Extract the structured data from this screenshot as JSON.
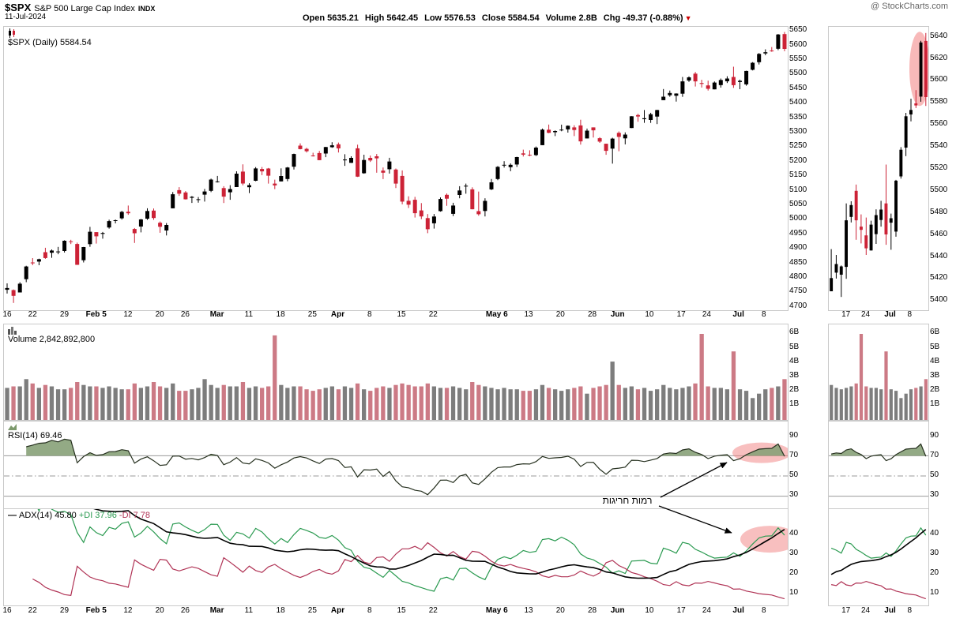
{
  "header": {
    "symbol": "$SPX",
    "name": "S&P 500 Large Cap Index",
    "exchange": "INDX",
    "date": "11-Jul-2024",
    "credit": "@ StockCharts.com",
    "quote": {
      "open_label": "Open",
      "open": "5635.21",
      "high_label": "High",
      "high": "5642.45",
      "low_label": "Low",
      "low": "5576.53",
      "close_label": "Close",
      "close": "5584.54",
      "volume_label": "Volume",
      "volume": "2.8B",
      "chg_label": "Chg",
      "chg": "-49.37 (-0.88%)",
      "chg_dir": "▼"
    }
  },
  "panels": {
    "price": {
      "label": "$SPX (Daily) 5584.54"
    },
    "volume": {
      "label": "Volume 2,842,892,800"
    },
    "rsi": {
      "label": "RSI(14) 69.46"
    },
    "adx": {
      "label": "ADX(14) 45.80",
      "pdi": "+DI 37.96",
      "mdi": "-DI 7.78"
    }
  },
  "annotation": {
    "text": "רמות חריגות"
  },
  "chart_data": {
    "type": "candlestick",
    "symbol": "$SPX",
    "timeframe": "Daily",
    "title": "$SPX Daily with Volume, RSI(14) and ADX(14), Jan 16 2024 - Jul 11 2024",
    "sub_panels": [
      "price",
      "volume",
      "rsi",
      "adx"
    ],
    "price_axis": {
      "min": 4700,
      "max": 5650,
      "step": 50
    },
    "inset_axis": {
      "min": 5400,
      "max": 5640,
      "step": 20
    },
    "volume_axis": {
      "labels": [
        "6B",
        "5B",
        "4B",
        "3B",
        "2B",
        "1B"
      ]
    },
    "rsi_axis": {
      "labels": [
        90,
        70,
        50,
        30
      ],
      "ref_lines": [
        70,
        50,
        30
      ]
    },
    "adx_axis": {
      "labels": [
        40,
        30,
        20,
        10
      ]
    },
    "inset_start": 103,
    "x_ticks": [
      {
        "i": 0,
        "t": "16"
      },
      {
        "i": 4,
        "t": "22"
      },
      {
        "i": 9,
        "t": "29"
      },
      {
        "i": 14,
        "t": "Feb 5",
        "b": 1
      },
      {
        "i": 19,
        "t": "12"
      },
      {
        "i": 24,
        "t": "20"
      },
      {
        "i": 28,
        "t": "26"
      },
      {
        "i": 33,
        "t": "Mar",
        "b": 1
      },
      {
        "i": 38,
        "t": "11"
      },
      {
        "i": 43,
        "t": "18"
      },
      {
        "i": 48,
        "t": "25"
      },
      {
        "i": 52,
        "t": "Apr",
        "b": 1
      },
      {
        "i": 57,
        "t": "8"
      },
      {
        "i": 62,
        "t": "15"
      },
      {
        "i": 67,
        "t": "22"
      },
      {
        "i": 77,
        "t": "May 6",
        "b": 1
      },
      {
        "i": 82,
        "t": "13"
      },
      {
        "i": 87,
        "t": "20"
      },
      {
        "i": 92,
        "t": "28"
      },
      {
        "i": 96,
        "t": "Jun",
        "b": 1
      },
      {
        "i": 101,
        "t": "10"
      },
      {
        "i": 106,
        "t": "17"
      },
      {
        "i": 110,
        "t": "24"
      },
      {
        "i": 115,
        "t": "Jul",
        "b": 1
      },
      {
        "i": 119,
        "t": "8"
      }
    ],
    "inset_x_ticks": [
      {
        "i": 106,
        "t": "17"
      },
      {
        "i": 110,
        "t": "24"
      },
      {
        "i": 115,
        "t": "Jul",
        "b": 1
      },
      {
        "i": 119,
        "t": "8"
      }
    ],
    "last": {
      "close": 5584.54,
      "volume": 2842892800,
      "rsi": 69.46,
      "adx": 45.8,
      "plus_di": 37.96,
      "minus_di": 7.78
    },
    "colors": {
      "candle_up": "#000000",
      "candle_down": "#cc2236",
      "volume_up": "#7d7d7d",
      "volume_down": "#cc7a85",
      "rsi_line": "#26301f",
      "rsi_fill": "#87a178",
      "adx_line": "#000000",
      "plus_di": "#2a9a50",
      "minus_di": "#b03355",
      "highlight": "#f28080",
      "ref_line": "#999999"
    },
    "candles": [
      [
        "Jan 16",
        4760.1,
        4782,
        4747,
        4766,
        2.2
      ],
      [
        "Jan 17",
        4759,
        4761,
        4714.8,
        4739.2,
        2.3
      ],
      [
        "Jan 18",
        4750.9,
        4785.8,
        4750.9,
        4780.9,
        2.3
      ],
      [
        "Jan 19",
        4796.3,
        4842.1,
        4785.9,
        4839.8,
        2.8
      ],
      [
        "Jan 22",
        4853.4,
        4868.4,
        4844.4,
        4850.4,
        2.5
      ],
      [
        "Jan 23",
        4856.6,
        4866.5,
        4844.1,
        4864.6,
        2.2
      ],
      [
        "Jan 24",
        4888.6,
        4903.7,
        4865.9,
        4868.6,
        2.4
      ],
      [
        "Jan 25",
        4886.7,
        4898.1,
        4869.3,
        4894.2,
        2.3
      ],
      [
        "Jan 26",
        4888.9,
        4906.7,
        4881.5,
        4891,
        2.1
      ],
      [
        "Jan 29",
        4892.9,
        4929.3,
        4887.4,
        4927.9,
        2.1
      ],
      [
        "Jan 30",
        4925.9,
        4931.1,
        4916.3,
        4925,
        2.2
      ],
      [
        "Jan 31",
        4916.8,
        4921.2,
        4845.2,
        4845.6,
        2.6
      ],
      [
        "Feb 1",
        4861.1,
        4906.8,
        4853.5,
        4906.2,
        2.4
      ],
      [
        "Feb 2",
        4916.1,
        4975.3,
        4907.1,
        4958.6,
        2.3
      ],
      [
        "Feb 5",
        4957.2,
        4957.2,
        4918.1,
        4942.8,
        2.3
      ],
      [
        "Feb 6",
        4951.1,
        4957.8,
        4934.9,
        4954.2,
        2.2
      ],
      [
        "Feb 7",
        4973.1,
        4999.9,
        4969.1,
        4995.1,
        2.3
      ],
      [
        "Feb 8",
        4995.2,
        5000.4,
        4987.1,
        4997.9,
        2.2
      ],
      [
        "Feb 9",
        5004.4,
        5030.1,
        5000.3,
        5026.6,
        2.1
      ],
      [
        "Feb 12",
        5026.8,
        5048.4,
        5016.8,
        5021.8,
        2.1
      ],
      [
        "Feb 13",
        4967.9,
        4971.3,
        4920.3,
        4953.2,
        2.5
      ],
      [
        "Feb 14",
        4976.4,
        5002.5,
        4956.5,
        5000.6,
        2.2
      ],
      [
        "Feb 15",
        5003.1,
        5038.7,
        4999.5,
        5029.7,
        2.3
      ],
      [
        "Feb 16",
        5031.1,
        5038.2,
        4999.4,
        5005.6,
        2.6
      ],
      [
        "Feb 20",
        4989.3,
        4993.7,
        4955,
        4975.5,
        2.3
      ],
      [
        "Feb 21",
        4963,
        4988.2,
        4946,
        4981.8,
        2.2
      ],
      [
        "Feb 22",
        5038.8,
        5094.4,
        5038.8,
        5087,
        2.5
      ],
      [
        "Feb 23",
        5100.9,
        5111.1,
        5081.5,
        5088.8,
        2.0
      ],
      [
        "Feb 26",
        5093,
        5097.7,
        5068.9,
        5069.5,
        2.0
      ],
      [
        "Feb 27",
        5074.6,
        5080.7,
        5057.3,
        5078.2,
        2.1
      ],
      [
        "Feb 28",
        5067.2,
        5077.4,
        5058.4,
        5069.8,
        2.2
      ],
      [
        "Feb 29",
        5085.4,
        5104.9,
        5061.9,
        5096.3,
        2.8
      ],
      [
        "Mar 1",
        5098.5,
        5140.3,
        5094.2,
        5137.1,
        2.4
      ],
      [
        "Mar 4",
        5130.7,
        5149.7,
        5127.2,
        5131,
        2.2
      ],
      [
        "Mar 5",
        5108,
        5114.5,
        5056.8,
        5078.7,
        2.4
      ],
      [
        "Mar 6",
        5093.6,
        5117.9,
        5068,
        5104.8,
        2.3
      ],
      [
        "Mar 7",
        5111.5,
        5165.6,
        5111.5,
        5157.4,
        2.3
      ],
      [
        "Mar 8",
        5164.5,
        5189.3,
        5117.5,
        5123.7,
        2.6
      ],
      [
        "Mar 11",
        5111,
        5124.7,
        5091.1,
        5117.9,
        2.2
      ],
      [
        "Mar 12",
        5133.2,
        5179.9,
        5131.6,
        5175.3,
        2.3
      ],
      [
        "Mar 13",
        5173.5,
        5180,
        5152.2,
        5165.3,
        2.2
      ],
      [
        "Mar 14",
        5175.1,
        5176.9,
        5123.3,
        5150.5,
        2.3
      ],
      [
        "Mar 15",
        5123.3,
        5136.9,
        5104.4,
        5117.1,
        5.8
      ],
      [
        "Mar 18",
        5131,
        5175.6,
        5131,
        5149.4,
        2.4
      ],
      [
        "Mar 19",
        5139.1,
        5180.3,
        5131.6,
        5178.5,
        2.2
      ],
      [
        "Mar 20",
        5181.1,
        5226.2,
        5171.5,
        5224.6,
        2.3
      ],
      [
        "Mar 21",
        5253.4,
        5261.1,
        5240.7,
        5241.5,
        2.3
      ],
      [
        "Mar 22",
        5242.3,
        5246.1,
        5229.9,
        5234.2,
        2.1
      ],
      [
        "Mar 25",
        5219.5,
        5229.1,
        5216.1,
        5218.2,
        2.0
      ],
      [
        "Mar 26",
        5228,
        5235.2,
        5203.4,
        5203.6,
        2.1
      ],
      [
        "Mar 27",
        5226.3,
        5249.3,
        5213.9,
        5248.5,
        2.2
      ],
      [
        "Mar 28",
        5248,
        5264.9,
        5245.8,
        5254.4,
        2.3
      ],
      [
        "Apr 1",
        5257.9,
        5263.9,
        5229.9,
        5243.8,
        2.1
      ],
      [
        "Apr 2",
        5204.3,
        5223.9,
        5184.1,
        5205.8,
        2.3
      ],
      [
        "Apr 3",
        5194.4,
        5217,
        5194.1,
        5211.5,
        2.2
      ],
      [
        "Apr 4",
        5244.1,
        5256.6,
        5146.1,
        5147.2,
        2.5
      ],
      [
        "Apr 5",
        5158.9,
        5222.2,
        5157.2,
        5204.3,
        2.1
      ],
      [
        "Apr 8",
        5211.4,
        5219.6,
        5197.4,
        5202.4,
        2.0
      ],
      [
        "Apr 9",
        5217,
        5224.8,
        5160.8,
        5209.9,
        2.2
      ],
      [
        "Apr 10",
        5167.9,
        5178.4,
        5138.7,
        5160.6,
        2.3
      ],
      [
        "Apr 11",
        5172.6,
        5211.8,
        5157.7,
        5199.1,
        2.2
      ],
      [
        "Apr 12",
        5171.4,
        5175,
        5107.9,
        5123.4,
        2.4
      ],
      [
        "Apr 15",
        5149.7,
        5168.4,
        5052.5,
        5061.8,
        2.5
      ],
      [
        "Apr 16",
        5064.6,
        5079.8,
        5039.8,
        5051.4,
        2.4
      ],
      [
        "Apr 17",
        5068,
        5077.9,
        5007.3,
        5022.2,
        2.3
      ],
      [
        "Apr 18",
        5031.5,
        5056.7,
        5001.9,
        5011.1,
        2.3
      ],
      [
        "Apr 19",
        5005.4,
        5019,
        4953.6,
        4967.2,
        2.5
      ],
      [
        "Apr 22",
        4987.3,
        5019.3,
        4969.4,
        5010.6,
        2.3
      ],
      [
        "Apr 23",
        5028.9,
        5076.1,
        5027.6,
        5070.6,
        2.2
      ],
      [
        "Apr 24",
        5084.9,
        5089.5,
        5047.1,
        5071.6,
        2.2
      ],
      [
        "Apr 25",
        5019.9,
        5057.8,
        5012.1,
        5048.4,
        2.3
      ],
      [
        "Apr 26",
        5084.7,
        5114.6,
        5073.1,
        5100,
        2.2
      ],
      [
        "Apr 29",
        5114.1,
        5123.5,
        5088.7,
        5116.2,
        2.1
      ],
      [
        "Apr 30",
        5103.8,
        5110.8,
        5035.3,
        5035.7,
        2.6
      ],
      [
        "May 1",
        5029,
        5096.1,
        5013.5,
        5018.4,
        2.4
      ],
      [
        "May 2",
        5029.6,
        5073.2,
        5011.1,
        5064.2,
        2.3
      ],
      [
        "May 3",
        5103.8,
        5139.1,
        5101.2,
        5127.8,
        2.2
      ],
      [
        "May 6",
        5139,
        5183.3,
        5135.2,
        5180.7,
        2.1
      ],
      [
        "May 7",
        5187.1,
        5200.2,
        5178.2,
        5187.7,
        2.2
      ],
      [
        "May 8",
        5179.5,
        5192.6,
        5165.9,
        5187.7,
        2.1
      ],
      [
        "May 9",
        5188.6,
        5215.3,
        5180.4,
        5214.1,
        2.1
      ],
      [
        "May 10",
        5227,
        5239.7,
        5216.1,
        5222.7,
        2.0
      ],
      [
        "May 13",
        5222.1,
        5237.3,
        5217,
        5221.4,
        2.0
      ],
      [
        "May 14",
        5221.1,
        5250.4,
        5217.6,
        5246.7,
        2.1
      ],
      [
        "May 15",
        5255,
        5311.8,
        5255,
        5308.2,
        2.4
      ],
      [
        "May 16",
        5307.9,
        5325.5,
        5296.1,
        5297.1,
        2.2
      ],
      [
        "May 17",
        5299.3,
        5305.4,
        5286,
        5303.3,
        2.1
      ],
      [
        "May 20",
        5305.4,
        5325.3,
        5302.4,
        5308.1,
        2.0
      ],
      [
        "May 21",
        5309,
        5322.5,
        5297.9,
        5321.4,
        2.1
      ],
      [
        "May 22",
        5315.9,
        5323.2,
        5286,
        5307,
        2.2
      ],
      [
        "May 23",
        5322.4,
        5341.9,
        5256.9,
        5267.8,
        2.3
      ],
      [
        "May 24",
        5277.9,
        5311.7,
        5277.9,
        5304.7,
        1.8
      ],
      [
        "May 28",
        5315.9,
        5315.9,
        5280.9,
        5306,
        2.2
      ],
      [
        "May 29",
        5278.7,
        5282.2,
        5262.7,
        5267,
        2.3
      ],
      [
        "May 30",
        5259.9,
        5260.2,
        5222.1,
        5235.5,
        2.4
      ],
      [
        "May 31",
        5243.2,
        5280.3,
        5191.7,
        5277.5,
        4.0
      ],
      [
        "Jun 3",
        5297.2,
        5302.1,
        5234.3,
        5283.4,
        2.4
      ],
      [
        "Jun 4",
        5278.3,
        5298.8,
        5257.6,
        5291.3,
        2.2
      ],
      [
        "Jun 5",
        5313.7,
        5354.2,
        5313.7,
        5354,
        2.3
      ],
      [
        "Jun 6",
        5357.8,
        5362.4,
        5335,
        5353,
        2.1
      ],
      [
        "Jun 7",
        5343.8,
        5375.1,
        5331.5,
        5347,
        2.2
      ],
      [
        "Jun 10",
        5341.2,
        5365.8,
        5331.3,
        5360.8,
        2.0
      ],
      [
        "Jun 11",
        5353,
        5375.9,
        5327.2,
        5375.3,
        2.1
      ],
      [
        "Jun 12",
        5409.1,
        5447.2,
        5409.1,
        5421,
        2.4
      ],
      [
        "Jun 13",
        5425.9,
        5441.9,
        5420.6,
        5433.7,
        2.2
      ],
      [
        "Jun 14",
        5424.1,
        5432.4,
        5404,
        5431.6,
        2.1
      ],
      [
        "Jun 17",
        5431.1,
        5488.5,
        5420.4,
        5473.2,
        2.2
      ],
      [
        "Jun 18",
        5476.3,
        5490.4,
        5471.3,
        5487,
        2.3
      ],
      [
        "Jun 20",
        5499.8,
        5505.5,
        5455.6,
        5473.2,
        2.5
      ],
      [
        "Jun 21",
        5467.5,
        5478.6,
        5452.3,
        5464.6,
        5.9
      ],
      [
        "Jun 24",
        5459.6,
        5475.7,
        5441.9,
        5447.9,
        2.3
      ],
      [
        "Jun 25",
        5446,
        5472.9,
        5446,
        5469.3,
        2.2
      ],
      [
        "Jun 26",
        5460.7,
        5483.1,
        5451.9,
        5477.9,
        2.2
      ],
      [
        "Jun 27",
        5473.5,
        5490.8,
        5467.5,
        5482.9,
        2.1
      ],
      [
        "Jun 28",
        5488.5,
        5523.6,
        5451.1,
        5460.5,
        4.7
      ],
      [
        "Jul 1",
        5471.1,
        5479.3,
        5446.6,
        5475.1,
        2.1
      ],
      [
        "Jul 2",
        5463,
        5509.7,
        5458.4,
        5509,
        2.0
      ],
      [
        "Jul 3",
        5512.9,
        5539.3,
        5510.9,
        5537,
        1.5
      ],
      [
        "Jul 5",
        5538.9,
        5570.3,
        5531.2,
        5567.2,
        1.8
      ],
      [
        "Jul 8",
        5568.8,
        5583.1,
        5562.6,
        5572.9,
        2.1
      ],
      [
        "Jul 9",
        5578.9,
        5590.8,
        5574.6,
        5577,
        2.2
      ],
      [
        "Jul 10",
        5585,
        5635.4,
        5580.3,
        5633.9,
        2.3
      ],
      [
        "Jul 11",
        5635.21,
        5642.45,
        5576.53,
        5584.54,
        2.8
      ]
    ]
  }
}
